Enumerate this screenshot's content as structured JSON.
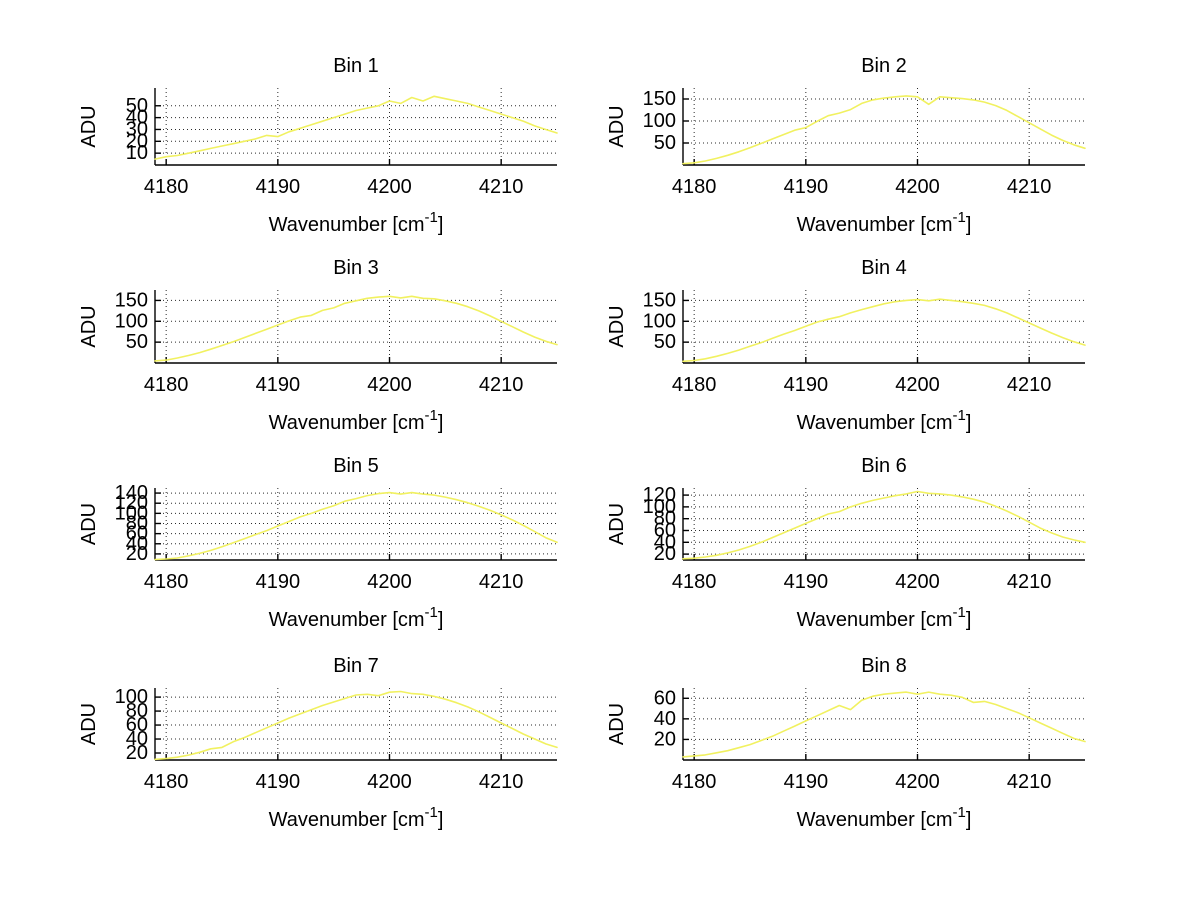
{
  "figure": {
    "background": "#ffffff",
    "line_color": "#f1f160",
    "grid_color": "#2a2a2a",
    "axis_color": "#000000",
    "text_color": "#000000"
  },
  "chart_data": {
    "type": "line",
    "subplot_grid": [
      4,
      2
    ],
    "common": {
      "xlabel_main": "Wavenumber [cm",
      "xlabel_sup": "-1",
      "xlabel_close": "]",
      "ylabel": "ADU",
      "x_ticks": [
        4180,
        4190,
        4200,
        4210
      ],
      "xlim": [
        4179,
        4215
      ],
      "grid": true,
      "x": [
        4179,
        4180,
        4181,
        4182,
        4183,
        4184,
        4185,
        4186,
        4187,
        4188,
        4189,
        4190,
        4191,
        4192,
        4193,
        4194,
        4195,
        4196,
        4197,
        4198,
        4199,
        4200,
        4201,
        4202,
        4203,
        4204,
        4205,
        4206,
        4207,
        4208,
        4209,
        4210,
        4211,
        4212,
        4213,
        4214,
        4215
      ]
    },
    "subplots": [
      {
        "title": "Bin 1",
        "y_ticks": [
          10,
          20,
          30,
          40,
          50
        ],
        "ylim": [
          0,
          65
        ],
        "values": [
          5,
          7,
          8,
          10,
          12,
          14,
          16,
          18,
          20,
          22,
          25,
          24,
          28,
          31,
          34,
          37,
          40,
          43,
          46,
          48,
          50,
          54,
          52,
          57,
          54,
          58,
          56,
          54,
          52,
          49,
          46,
          43,
          40,
          37,
          33,
          30,
          27
        ]
      },
      {
        "title": "Bin 2",
        "y_ticks": [
          50,
          100,
          150
        ],
        "ylim": [
          0,
          175
        ],
        "values": [
          3,
          5,
          9,
          15,
          22,
          30,
          39,
          49,
          59,
          69,
          79,
          85,
          99,
          112,
          118,
          126,
          140,
          148,
          152,
          155,
          157,
          155,
          138,
          155,
          153,
          151,
          148,
          143,
          135,
          124,
          110,
          96,
          82,
          68,
          56,
          46,
          38
        ]
      },
      {
        "title": "Bin 3",
        "y_ticks": [
          50,
          100,
          150
        ],
        "ylim": [
          0,
          175
        ],
        "values": [
          5,
          7,
          12,
          18,
          25,
          33,
          42,
          51,
          61,
          71,
          81,
          91,
          101,
          110,
          114,
          126,
          132,
          143,
          149,
          155,
          158,
          160,
          156,
          160,
          155,
          154,
          149,
          143,
          135,
          125,
          113,
          100,
          87,
          74,
          62,
          52,
          44
        ]
      },
      {
        "title": "Bin 4",
        "y_ticks": [
          50,
          100,
          150
        ],
        "ylim": [
          0,
          175
        ],
        "values": [
          4,
          6,
          10,
          16,
          23,
          31,
          40,
          49,
          59,
          69,
          78,
          88,
          98,
          105,
          111,
          120,
          128,
          135,
          142,
          147,
          150,
          152,
          149,
          153,
          150,
          147,
          143,
          138,
          130,
          120,
          108,
          96,
          84,
          72,
          61,
          51,
          43
        ]
      },
      {
        "title": "Bin 5",
        "y_ticks": [
          20,
          40,
          60,
          80,
          100,
          120,
          140
        ],
        "ylim": [
          8,
          150
        ],
        "values": [
          9,
          10,
          12,
          16,
          21,
          27,
          34,
          42,
          50,
          58,
          66,
          75,
          84,
          93,
          100,
          108,
          115,
          124,
          129,
          135,
          139,
          141,
          138,
          141,
          138,
          136,
          132,
          127,
          121,
          114,
          106,
          97,
          87,
          76,
          64,
          52,
          43
        ]
      },
      {
        "title": "Bin 6",
        "y_ticks": [
          20,
          40,
          60,
          80,
          100,
          120
        ],
        "ylim": [
          10,
          132
        ],
        "values": [
          12,
          13,
          15,
          18,
          22,
          27,
          33,
          40,
          48,
          56,
          64,
          72,
          80,
          88,
          92,
          100,
          106,
          111,
          115,
          119,
          122,
          126,
          123,
          122,
          120,
          117,
          113,
          108,
          101,
          93,
          84,
          74,
          64,
          56,
          49,
          44,
          40
        ]
      },
      {
        "title": "Bin 7",
        "y_ticks": [
          20,
          40,
          60,
          80,
          100
        ],
        "ylim": [
          10,
          113
        ],
        "values": [
          11,
          12,
          14,
          17,
          21,
          26,
          28,
          36,
          42,
          49,
          56,
          63,
          70,
          76,
          82,
          88,
          93,
          98,
          103,
          104,
          102,
          107,
          108,
          105,
          104,
          101,
          97,
          92,
          86,
          79,
          71,
          63,
          55,
          47,
          40,
          33,
          28
        ]
      },
      {
        "title": "Bin 8",
        "y_ticks": [
          20,
          40,
          60
        ],
        "ylim": [
          0,
          70
        ],
        "values": [
          3,
          4,
          5,
          7,
          9,
          12,
          15,
          19,
          23,
          28,
          33,
          38,
          43,
          48,
          53,
          49,
          58,
          62,
          64,
          65,
          66,
          64,
          66,
          64,
          63,
          61,
          56,
          57,
          54,
          50,
          46,
          41,
          36,
          31,
          26,
          21,
          18
        ]
      }
    ]
  }
}
